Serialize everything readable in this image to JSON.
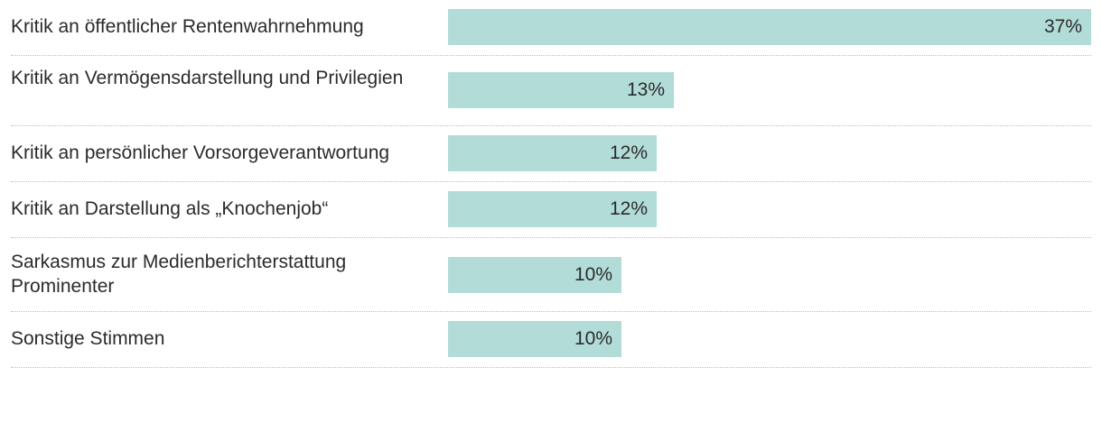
{
  "chart_data": {
    "type": "bar",
    "orientation": "horizontal",
    "categories": [
      "Kritik an öffentlicher Rentenwahrnehmung",
      "Kritik an Vermögensdarstellung und Privilegien",
      "Kritik an persönlicher Vorsorgeverantwortung",
      "Kritik an Darstellung als „Knochenjob“",
      "Sarkasmus zur Medienberichterstattung Prominenter",
      "Sonstige Stimmen"
    ],
    "values": [
      37,
      13,
      12,
      12,
      10,
      10
    ],
    "value_labels": [
      "37%",
      "13%",
      "12%",
      "12%",
      "10%",
      "10%"
    ],
    "xlim": [
      0,
      37
    ],
    "grid": false,
    "colors": {
      "bar": "#b2dcd8",
      "text": "#2b2b2b",
      "divider": "#bdbdbd"
    }
  }
}
